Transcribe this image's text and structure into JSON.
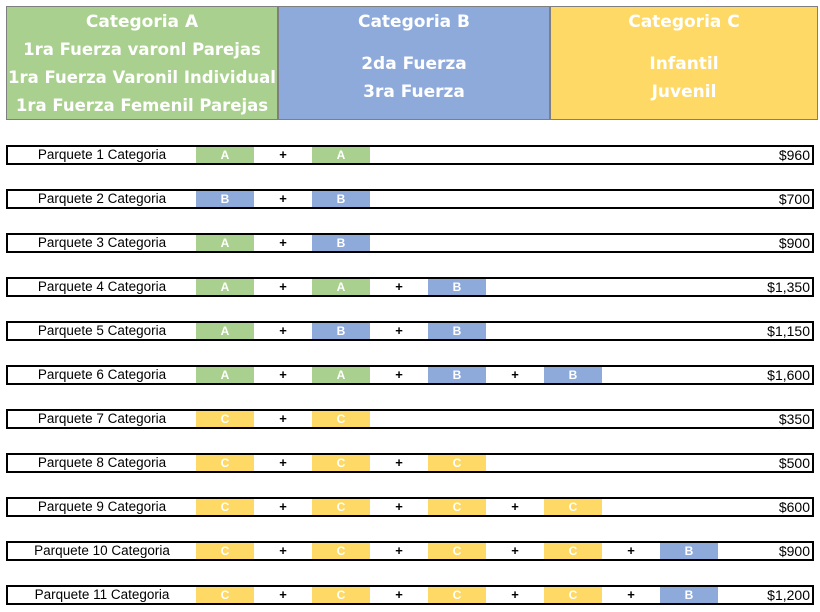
{
  "categories": [
    {
      "title": "Categoria A",
      "lines": [
        "1ra Fuerza varonl Parejas",
        "1ra Fuerza Varonil Individual",
        "1ra Fuerza Femenil Parejas"
      ],
      "color": "#a9d08e"
    },
    {
      "title": "Categoria B",
      "lines": [
        "2da Fuerza",
        "3ra Fuerza"
      ],
      "color": "#8eaadb"
    },
    {
      "title": "Categoria C",
      "lines": [
        "Infantil",
        "Juvenil"
      ],
      "color": "#ffd966"
    }
  ],
  "plus_sign": "+",
  "packages": [
    {
      "name": "Parquete 1  Categoria",
      "slots": [
        "A",
        "A"
      ],
      "price": "$960"
    },
    {
      "name": "Parquete 2  Categoria",
      "slots": [
        "B",
        "B"
      ],
      "price": "$700"
    },
    {
      "name": "Parquete 3  Categoria",
      "slots": [
        "A",
        "B"
      ],
      "price": "$900"
    },
    {
      "name": "Parquete 4  Categoria",
      "slots": [
        "A",
        "A",
        "B"
      ],
      "price": "$1,350"
    },
    {
      "name": "Parquete 5  Categoria",
      "slots": [
        "A",
        "B",
        "B"
      ],
      "price": "$1,150"
    },
    {
      "name": "Parquete 6  Categoria",
      "slots": [
        "A",
        "A",
        "B",
        "B"
      ],
      "price": "$1,600"
    },
    {
      "name": "Parquete 7  Categoria",
      "slots": [
        "C",
        "C"
      ],
      "price": "$350"
    },
    {
      "name": "Parquete 8  Categoria",
      "slots": [
        "C",
        "C",
        "C"
      ],
      "price": "$500"
    },
    {
      "name": "Parquete 9  Categoria",
      "slots": [
        "C",
        "C",
        "C",
        "C"
      ],
      "price": "$600"
    },
    {
      "name": "Parquete 10  Categoria",
      "slots": [
        "C",
        "C",
        "C",
        "C",
        "B"
      ],
      "price": "$900"
    },
    {
      "name": "Parquete 11  Categoria",
      "slots": [
        "C",
        "C",
        "C",
        "C",
        "B"
      ],
      "price": "$1,200"
    }
  ]
}
